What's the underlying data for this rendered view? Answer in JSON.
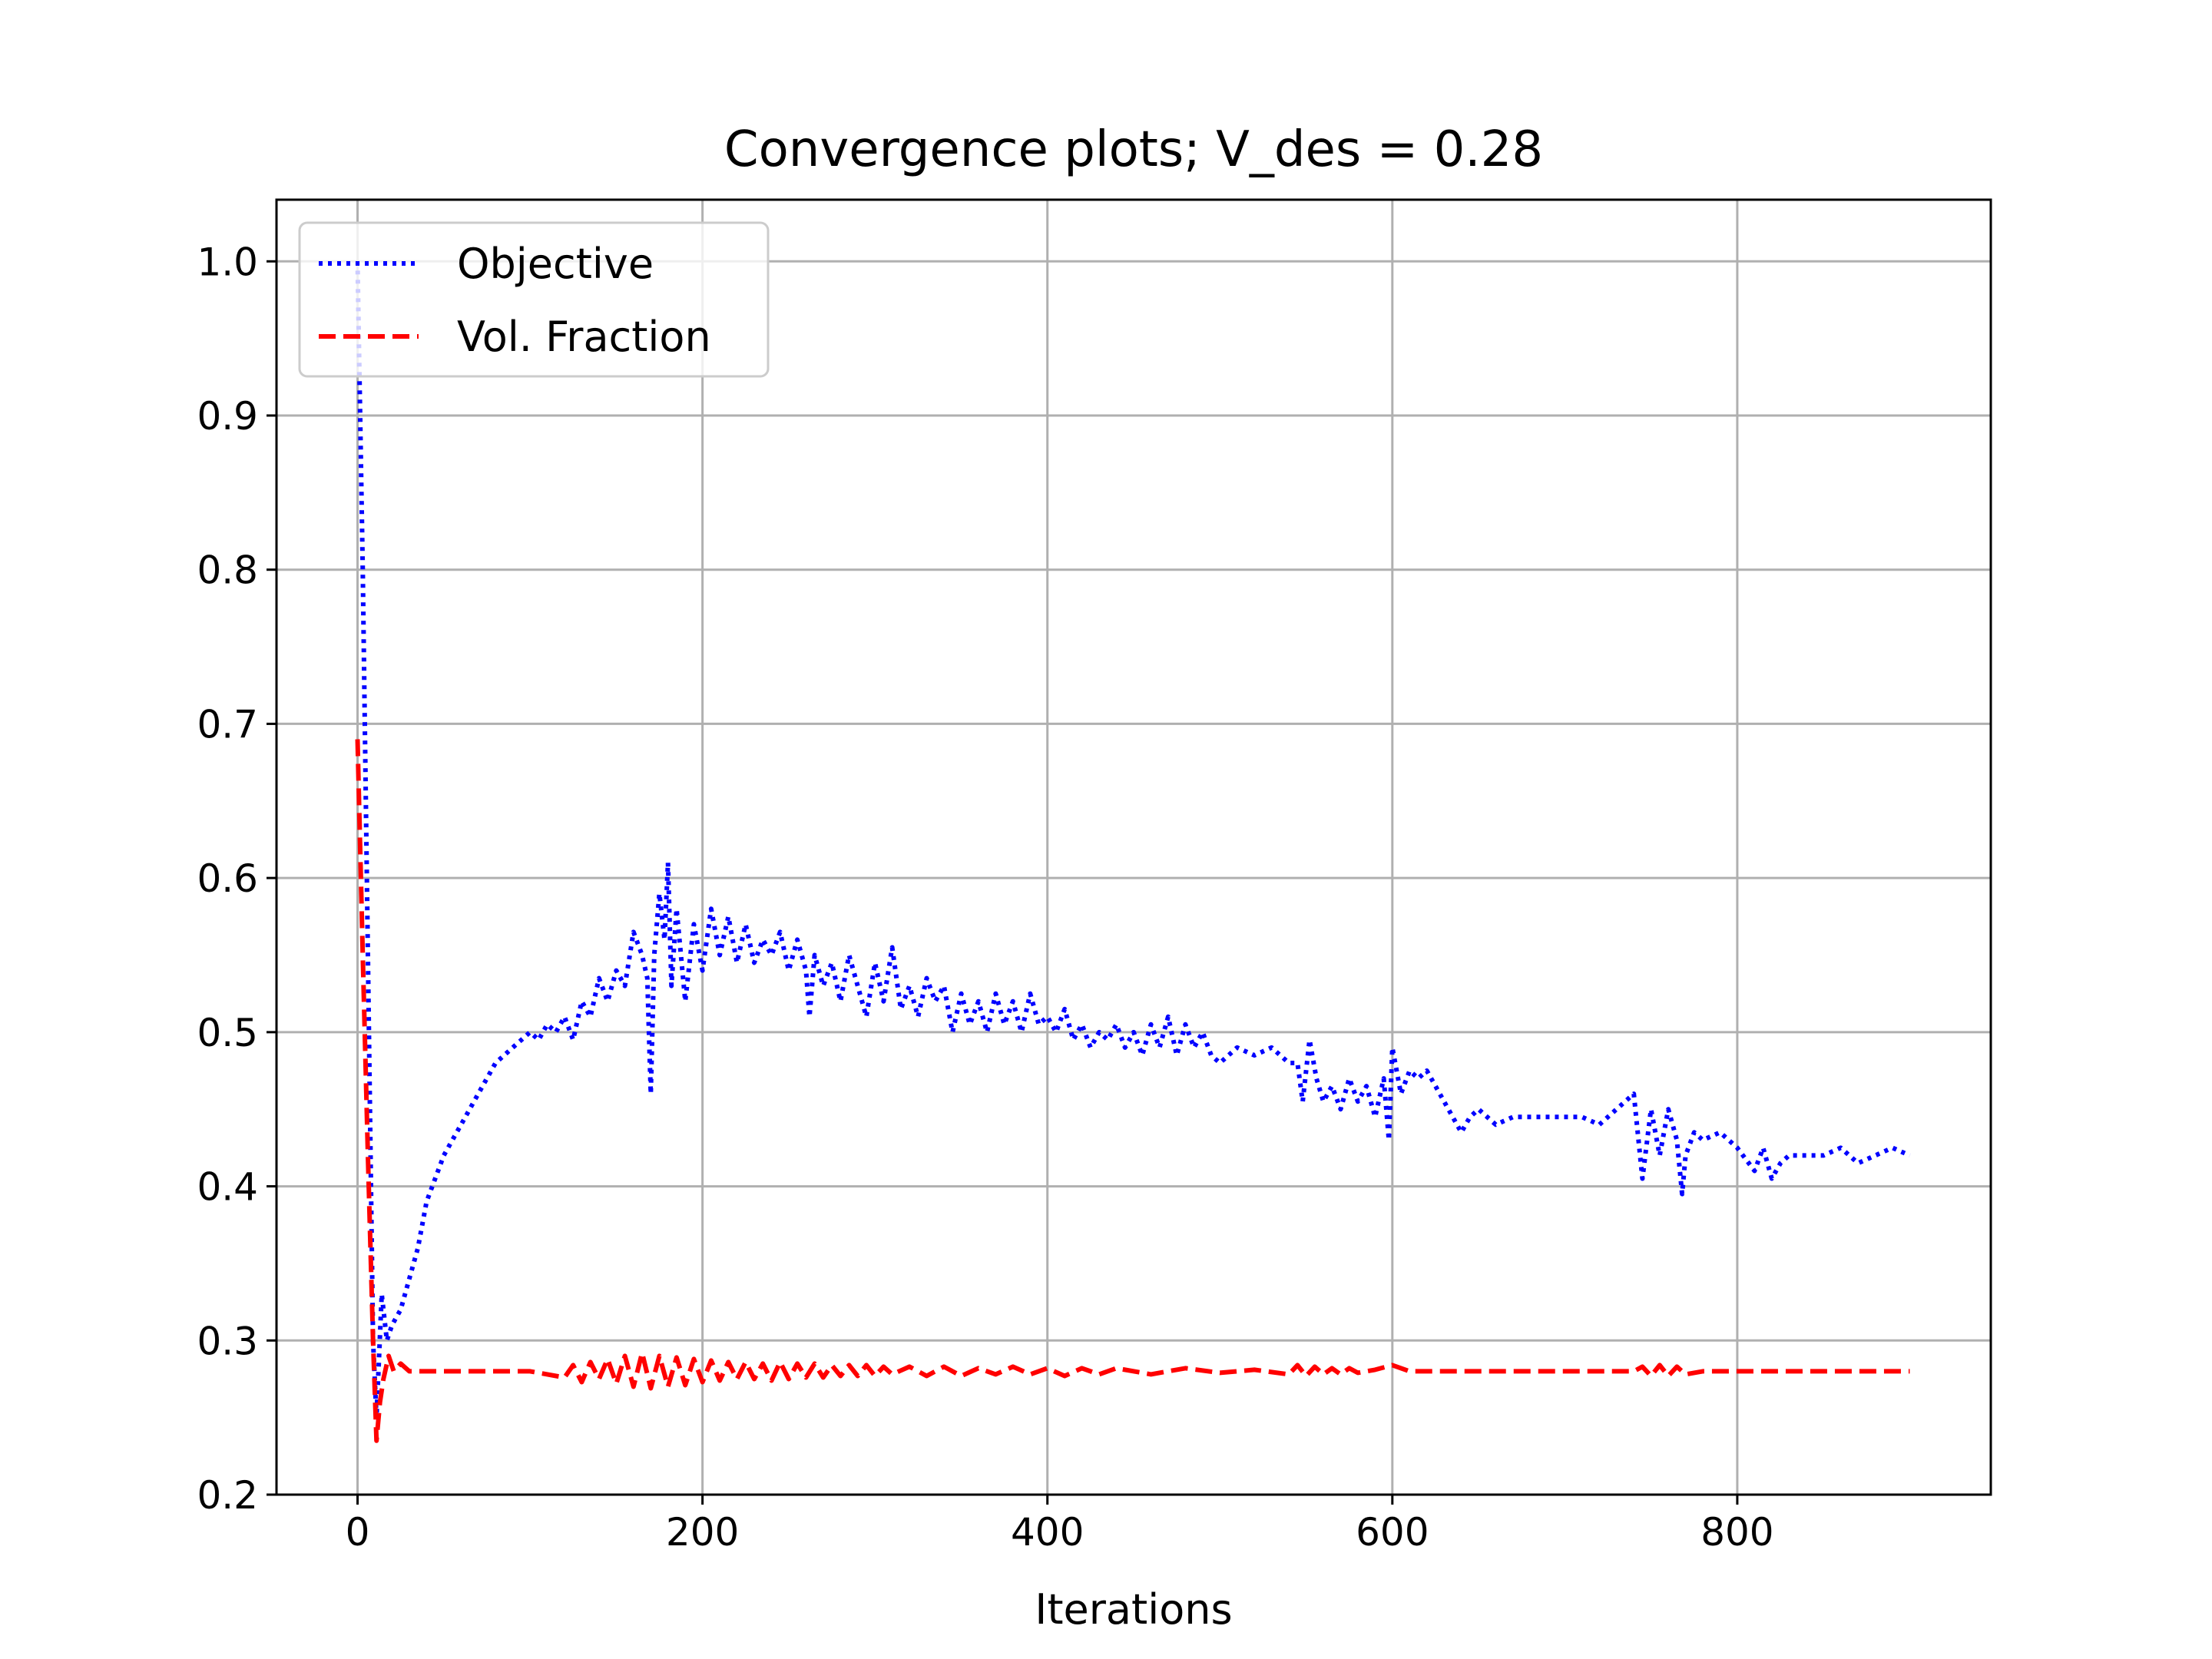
{
  "chart_data": {
    "type": "line",
    "title": "Convergence plots; V_des = 0.28",
    "xlabel": "Iterations",
    "ylabel": "",
    "xlim": [
      -47,
      947
    ],
    "ylim": [
      0.2,
      1.04
    ],
    "xticks": [
      0,
      200,
      400,
      600,
      800
    ],
    "yticks": [
      0.2,
      0.3,
      0.4,
      0.5,
      0.6,
      0.7,
      0.8,
      0.9,
      1.0
    ],
    "xtick_labels": [
      "0",
      "200",
      "400",
      "600",
      "800"
    ],
    "ytick_labels": [
      "0.2",
      "0.3",
      "0.4",
      "0.5",
      "0.6",
      "0.7",
      "0.8",
      "0.9",
      "1.0"
    ],
    "grid": true,
    "legend_position": "top-left",
    "series": [
      {
        "name": "Objective",
        "color": "#0000ff",
        "style": "dotted",
        "x": [
          0,
          3,
          6,
          9,
          11,
          14,
          17,
          20,
          25,
          30,
          35,
          40,
          45,
          50,
          55,
          60,
          65,
          70,
          75,
          80,
          85,
          90,
          95,
          100,
          105,
          110,
          115,
          120,
          125,
          130,
          135,
          140,
          145,
          150,
          155,
          160,
          165,
          168,
          170,
          172,
          175,
          178,
          180,
          182,
          185,
          190,
          195,
          200,
          205,
          210,
          215,
          220,
          225,
          230,
          235,
          240,
          245,
          250,
          255,
          260,
          262,
          265,
          270,
          275,
          280,
          285,
          290,
          295,
          300,
          305,
          310,
          315,
          320,
          325,
          330,
          335,
          340,
          345,
          350,
          355,
          360,
          365,
          370,
          375,
          380,
          385,
          390,
          395,
          400,
          405,
          410,
          415,
          420,
          425,
          430,
          435,
          440,
          445,
          450,
          455,
          460,
          465,
          470,
          475,
          480,
          485,
          490,
          495,
          500,
          510,
          520,
          530,
          540,
          545,
          548,
          552,
          556,
          560,
          565,
          570,
          575,
          580,
          585,
          590,
          595,
          598,
          600,
          605,
          610,
          615,
          620,
          625,
          630,
          635,
          640,
          645,
          650,
          660,
          670,
          680,
          690,
          700,
          710,
          720,
          730,
          740,
          745,
          750,
          755,
          760,
          765,
          768,
          770,
          775,
          780,
          790,
          800,
          810,
          815,
          820,
          825,
          830,
          840,
          850,
          860,
          870,
          880,
          890,
          900
        ],
        "y": [
          1.0,
          0.8,
          0.55,
          0.3,
          0.25,
          0.33,
          0.3,
          0.31,
          0.32,
          0.34,
          0.36,
          0.39,
          0.405,
          0.42,
          0.43,
          0.44,
          0.45,
          0.46,
          0.47,
          0.48,
          0.485,
          0.49,
          0.495,
          0.5,
          0.495,
          0.505,
          0.5,
          0.51,
          0.495,
          0.52,
          0.51,
          0.535,
          0.52,
          0.54,
          0.53,
          0.565,
          0.55,
          0.535,
          0.46,
          0.55,
          0.59,
          0.56,
          0.61,
          0.53,
          0.58,
          0.52,
          0.57,
          0.54,
          0.58,
          0.55,
          0.575,
          0.545,
          0.57,
          0.545,
          0.56,
          0.55,
          0.565,
          0.54,
          0.56,
          0.54,
          0.51,
          0.55,
          0.53,
          0.545,
          0.52,
          0.55,
          0.53,
          0.51,
          0.545,
          0.52,
          0.555,
          0.515,
          0.53,
          0.51,
          0.535,
          0.52,
          0.53,
          0.5,
          0.525,
          0.505,
          0.52,
          0.5,
          0.525,
          0.505,
          0.52,
          0.5,
          0.525,
          0.505,
          0.51,
          0.5,
          0.515,
          0.495,
          0.505,
          0.49,
          0.5,
          0.495,
          0.505,
          0.49,
          0.5,
          0.485,
          0.505,
          0.49,
          0.51,
          0.485,
          0.505,
          0.49,
          0.5,
          0.485,
          0.48,
          0.49,
          0.485,
          0.49,
          0.48,
          0.48,
          0.455,
          0.495,
          0.47,
          0.455,
          0.465,
          0.45,
          0.47,
          0.455,
          0.465,
          0.445,
          0.47,
          0.43,
          0.49,
          0.46,
          0.475,
          0.47,
          0.475,
          0.465,
          0.455,
          0.445,
          0.435,
          0.445,
          0.45,
          0.44,
          0.445,
          0.445,
          0.445,
          0.445,
          0.445,
          0.44,
          0.45,
          0.46,
          0.405,
          0.45,
          0.42,
          0.45,
          0.43,
          0.395,
          0.42,
          0.435,
          0.43,
          0.435,
          0.425,
          0.41,
          0.425,
          0.405,
          0.415,
          0.42,
          0.42,
          0.42,
          0.425,
          0.415,
          0.42,
          0.425,
          0.42
        ]
      },
      {
        "name": "Vol. Fraction",
        "color": "#ff0000",
        "style": "dashed",
        "x": [
          0,
          3,
          6,
          9,
          11,
          13,
          15,
          18,
          21,
          25,
          30,
          40,
          50,
          60,
          80,
          100,
          120,
          125,
          130,
          135,
          140,
          145,
          150,
          155,
          160,
          165,
          170,
          175,
          180,
          185,
          190,
          195,
          200,
          205,
          210,
          215,
          220,
          225,
          230,
          235,
          240,
          245,
          250,
          255,
          260,
          265,
          270,
          275,
          280,
          285,
          290,
          295,
          300,
          305,
          310,
          320,
          330,
          340,
          350,
          360,
          370,
          380,
          390,
          400,
          410,
          420,
          430,
          440,
          460,
          480,
          500,
          520,
          540,
          545,
          550,
          555,
          560,
          565,
          570,
          575,
          580,
          590,
          600,
          610,
          620,
          640,
          660,
          680,
          700,
          720,
          740,
          745,
          750,
          755,
          760,
          765,
          770,
          780,
          800,
          820,
          840,
          860,
          880,
          900
        ],
        "y": [
          0.69,
          0.55,
          0.42,
          0.3,
          0.235,
          0.26,
          0.275,
          0.29,
          0.28,
          0.285,
          0.28,
          0.28,
          0.28,
          0.28,
          0.28,
          0.28,
          0.276,
          0.284,
          0.273,
          0.286,
          0.275,
          0.288,
          0.272,
          0.29,
          0.27,
          0.292,
          0.269,
          0.29,
          0.27,
          0.289,
          0.271,
          0.288,
          0.273,
          0.287,
          0.274,
          0.286,
          0.275,
          0.286,
          0.275,
          0.285,
          0.274,
          0.286,
          0.275,
          0.285,
          0.276,
          0.285,
          0.276,
          0.284,
          0.277,
          0.284,
          0.277,
          0.284,
          0.277,
          0.283,
          0.278,
          0.283,
          0.277,
          0.283,
          0.277,
          0.282,
          0.278,
          0.283,
          0.278,
          0.282,
          0.277,
          0.282,
          0.278,
          0.282,
          0.278,
          0.282,
          0.279,
          0.281,
          0.278,
          0.284,
          0.277,
          0.283,
          0.278,
          0.282,
          0.278,
          0.282,
          0.279,
          0.281,
          0.284,
          0.28,
          0.28,
          0.28,
          0.28,
          0.28,
          0.28,
          0.28,
          0.28,
          0.283,
          0.277,
          0.284,
          0.277,
          0.283,
          0.278,
          0.28,
          0.28,
          0.28,
          0.28,
          0.28,
          0.28,
          0.28
        ]
      }
    ]
  }
}
